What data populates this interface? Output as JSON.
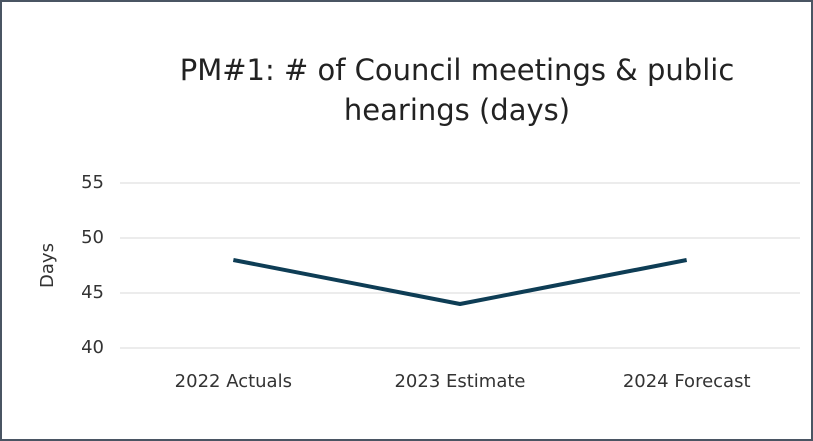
{
  "chart_data": {
    "type": "line",
    "title": "PM#1: # of Council meetings & public hearings (days)",
    "ylabel": "Days",
    "categories": [
      "2022 Actuals",
      "2023 Estimate",
      "2024 Forecast"
    ],
    "series": [
      {
        "name": "Days",
        "color": "#0e3d55",
        "values": [
          48,
          44,
          48
        ]
      }
    ],
    "ylim": [
      40,
      55
    ],
    "yticks": [
      40,
      45,
      50,
      55
    ],
    "grid": true
  }
}
